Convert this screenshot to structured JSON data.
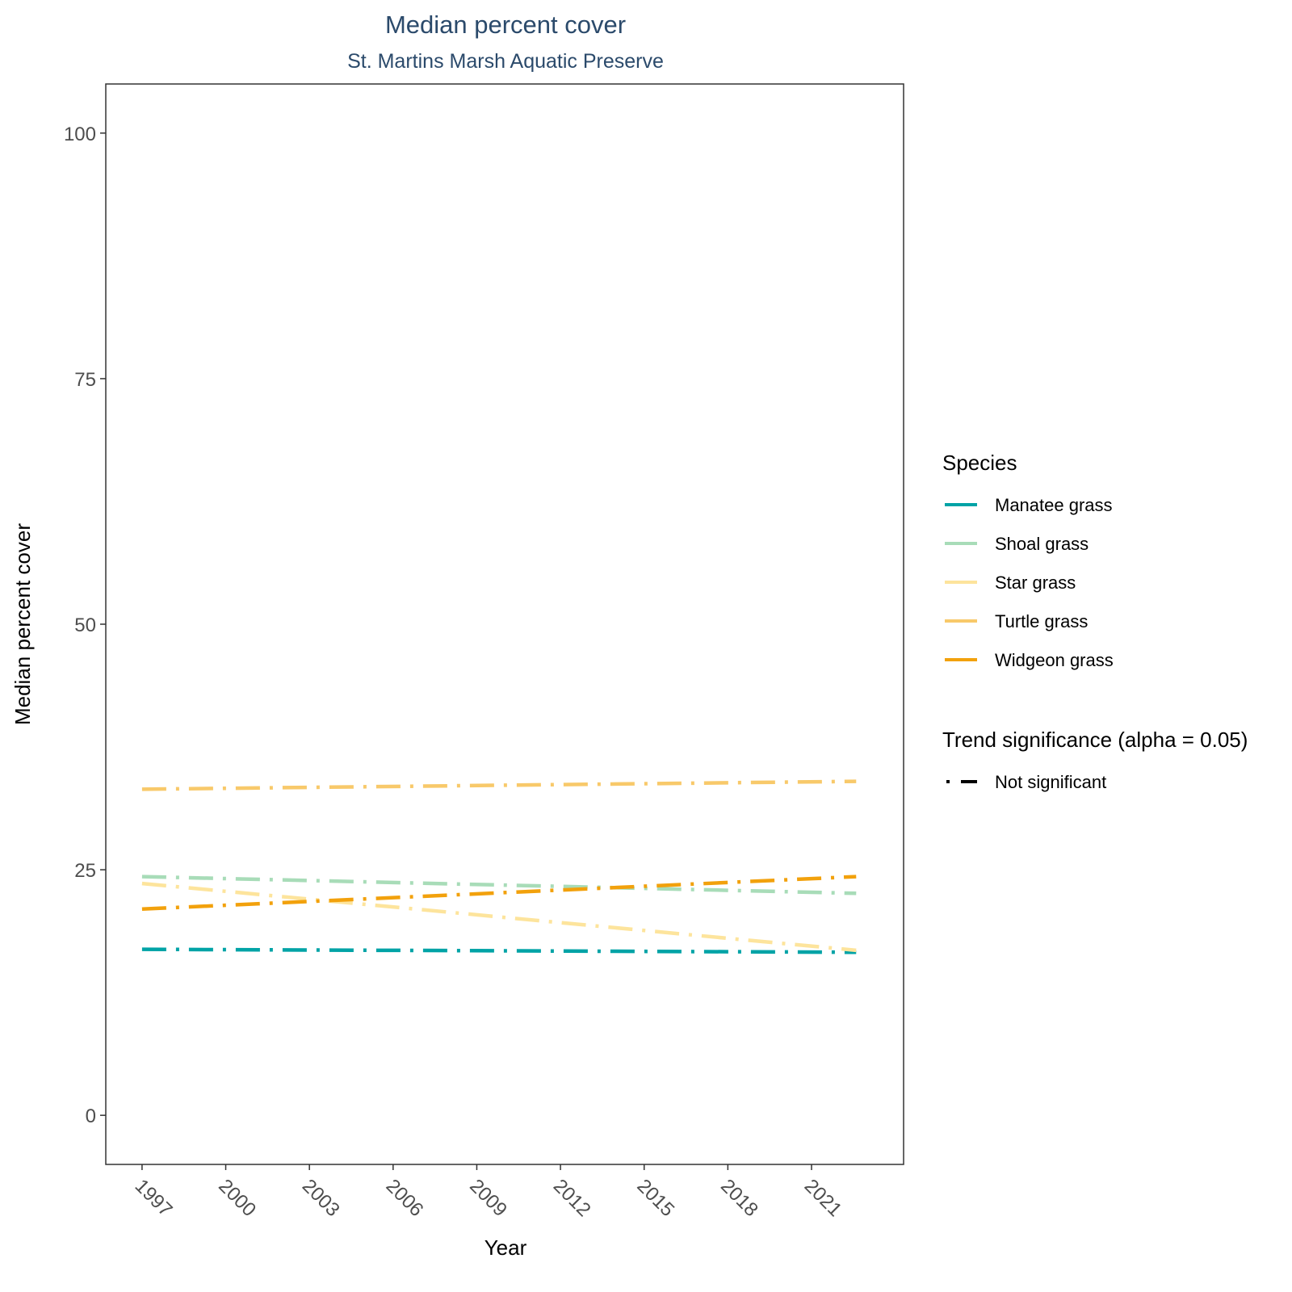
{
  "chart_data": {
    "type": "line",
    "title": "Median percent cover",
    "subtitle": "St. Martins Marsh Aquatic Preserve",
    "xlabel": "Year",
    "ylabel": "Median percent cover",
    "x_ticks": [
      1997,
      2000,
      2003,
      2006,
      2009,
      2012,
      2015,
      2018,
      2021
    ],
    "y_ticks": [
      0,
      25,
      50,
      75,
      100
    ],
    "xlim": [
      1995.7,
      2024.3
    ],
    "ylim": [
      -5,
      105
    ],
    "grid": false,
    "legend_position": "right",
    "legend_title": "Species",
    "series": [
      {
        "name": "Manatee grass",
        "color": "#00a3a6",
        "x": [
          1997,
          2022.6
        ],
        "y": [
          16.9,
          16.6
        ]
      },
      {
        "name": "Shoal grass",
        "color": "#a8dcb8",
        "x": [
          1997,
          2022.6
        ],
        "y": [
          24.3,
          22.6
        ]
      },
      {
        "name": "Star grass",
        "color": "#fde49c",
        "x": [
          1997,
          2022.6
        ],
        "y": [
          23.6,
          16.8
        ]
      },
      {
        "name": "Turtle grass",
        "color": "#f8c96a",
        "x": [
          1997,
          2022.6
        ],
        "y": [
          33.2,
          34.0
        ]
      },
      {
        "name": "Widgeon grass",
        "color": "#f2a10c",
        "x": [
          1997,
          2022.6
        ],
        "y": [
          21.0,
          24.3
        ]
      }
    ],
    "significance_legend": {
      "title": "Trend significance (alpha = 0.05)",
      "items": [
        {
          "label": "Not significant",
          "linetype": "dot-dash"
        }
      ]
    }
  }
}
